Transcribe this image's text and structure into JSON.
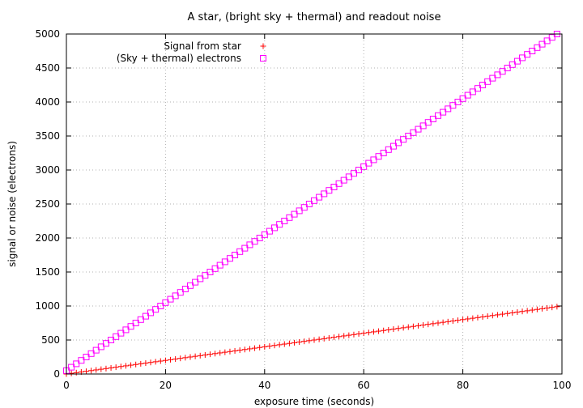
{
  "chart_data": {
    "type": "scatter",
    "title": "A star, (bright sky + thermal) and readout noise",
    "xlabel": "exposure time (seconds)",
    "ylabel": "signal or noise (electrons)",
    "xlim": [
      0,
      100
    ],
    "ylim": [
      0,
      5000
    ],
    "xticks": [
      0,
      20,
      40,
      60,
      80,
      100
    ],
    "yticks": [
      0,
      500,
      1000,
      1500,
      2000,
      2500,
      3000,
      3500,
      4000,
      4500,
      5000
    ],
    "grid": true,
    "legend_position": "top-center",
    "x": [
      0,
      1,
      2,
      3,
      4,
      5,
      6,
      7,
      8,
      9,
      10,
      11,
      12,
      13,
      14,
      15,
      16,
      17,
      18,
      19,
      20,
      21,
      22,
      23,
      24,
      25,
      26,
      27,
      28,
      29,
      30,
      31,
      32,
      33,
      34,
      35,
      36,
      37,
      38,
      39,
      40,
      41,
      42,
      43,
      44,
      45,
      46,
      47,
      48,
      49,
      50,
      51,
      52,
      53,
      54,
      55,
      56,
      57,
      58,
      59,
      60,
      61,
      62,
      63,
      64,
      65,
      66,
      67,
      68,
      69,
      70,
      71,
      72,
      73,
      74,
      75,
      76,
      77,
      78,
      79,
      80,
      81,
      82,
      83,
      84,
      85,
      86,
      87,
      88,
      89,
      90,
      91,
      92,
      93,
      94,
      95,
      96,
      97,
      98,
      99
    ],
    "series": [
      {
        "name": "Signal from star",
        "marker": "plus",
        "color": "#ff0000",
        "values": [
          0,
          10,
          20,
          30,
          40,
          50,
          60,
          70,
          80,
          90,
          100,
          110,
          120,
          130,
          140,
          150,
          160,
          170,
          180,
          190,
          200,
          210,
          220,
          230,
          240,
          250,
          260,
          270,
          280,
          290,
          300,
          310,
          320,
          330,
          340,
          350,
          360,
          370,
          380,
          390,
          400,
          410,
          420,
          430,
          440,
          450,
          460,
          470,
          480,
          490,
          500,
          510,
          520,
          530,
          540,
          550,
          560,
          570,
          580,
          590,
          600,
          610,
          620,
          630,
          640,
          650,
          660,
          670,
          680,
          690,
          700,
          710,
          720,
          730,
          740,
          750,
          760,
          770,
          780,
          790,
          800,
          810,
          820,
          830,
          840,
          850,
          860,
          870,
          880,
          890,
          900,
          910,
          920,
          930,
          940,
          950,
          960,
          970,
          980,
          990
        ]
      },
      {
        "name": "(Sky + thermal) electrons",
        "marker": "square",
        "color": "#ff00ff",
        "values": [
          50,
          100,
          150,
          200,
          250,
          300,
          350,
          400,
          450,
          500,
          550,
          600,
          650,
          700,
          750,
          800,
          850,
          900,
          950,
          1000,
          1050,
          1100,
          1150,
          1200,
          1250,
          1300,
          1350,
          1400,
          1450,
          1500,
          1550,
          1600,
          1650,
          1700,
          1750,
          1800,
          1850,
          1900,
          1950,
          2000,
          2050,
          2100,
          2150,
          2200,
          2250,
          2300,
          2350,
          2400,
          2450,
          2500,
          2550,
          2600,
          2650,
          2700,
          2750,
          2800,
          2850,
          2900,
          2950,
          3000,
          3050,
          3100,
          3150,
          3200,
          3250,
          3300,
          3350,
          3400,
          3450,
          3500,
          3550,
          3600,
          3650,
          3700,
          3750,
          3800,
          3850,
          3900,
          3950,
          4000,
          4050,
          4100,
          4150,
          4200,
          4250,
          4300,
          4350,
          4400,
          4450,
          4500,
          4550,
          4600,
          4650,
          4700,
          4750,
          4800,
          4850,
          4900,
          4950,
          5000
        ]
      }
    ]
  }
}
